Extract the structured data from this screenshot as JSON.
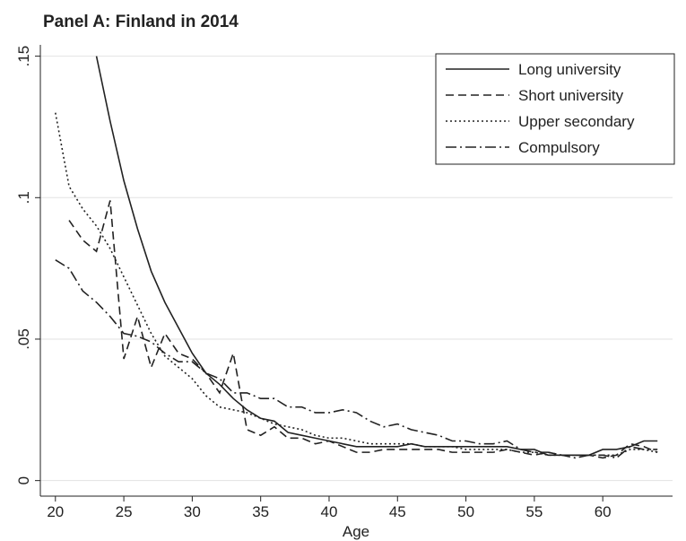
{
  "chart_data": {
    "type": "line",
    "title": "Panel A: Finland in 2014",
    "xlabel": "Age",
    "x": [
      20,
      21,
      22,
      23,
      24,
      25,
      26,
      27,
      28,
      29,
      30,
      31,
      32,
      33,
      34,
      35,
      36,
      37,
      38,
      39,
      40,
      41,
      42,
      43,
      44,
      45,
      46,
      47,
      48,
      49,
      50,
      51,
      52,
      53,
      54,
      55,
      56,
      57,
      58,
      59,
      60,
      61,
      62,
      63,
      64
    ],
    "series": [
      {
        "name": "Long university",
        "color": "#222222",
        "dash": "solid",
        "values": [
          null,
          null,
          null,
          0.15,
          0.127,
          0.106,
          0.089,
          0.074,
          0.063,
          0.054,
          0.045,
          0.038,
          0.034,
          0.029,
          0.025,
          0.022,
          0.021,
          0.017,
          0.016,
          0.015,
          0.014,
          0.013,
          0.012,
          0.012,
          0.012,
          0.012,
          0.013,
          0.012,
          0.012,
          0.012,
          0.012,
          0.012,
          0.012,
          0.012,
          0.011,
          0.011,
          0.009,
          0.009,
          0.009,
          0.009,
          0.011,
          0.011,
          0.012,
          0.014,
          0.014
        ]
      },
      {
        "name": "Short university",
        "color": "#222222",
        "dash": "dashed",
        "values": [
          null,
          0.092,
          0.085,
          0.081,
          0.099,
          0.043,
          0.058,
          0.04,
          0.052,
          0.045,
          0.043,
          0.038,
          0.031,
          0.045,
          0.018,
          0.016,
          0.019,
          0.015,
          0.015,
          0.013,
          0.014,
          0.012,
          0.01,
          0.01,
          0.011,
          0.011,
          0.011,
          0.011,
          0.011,
          0.01,
          0.01,
          0.01,
          0.01,
          0.011,
          0.01,
          0.009,
          0.01,
          0.009,
          0.009,
          0.009,
          0.008,
          0.009,
          0.013,
          0.012,
          0.01
        ]
      },
      {
        "name": "Upper secondary",
        "color": "#222222",
        "dash": "dotted",
        "values": [
          0.13,
          0.104,
          0.096,
          0.09,
          0.082,
          0.072,
          0.062,
          0.052,
          0.044,
          0.04,
          0.036,
          0.03,
          0.026,
          0.025,
          0.024,
          0.022,
          0.02,
          0.019,
          0.018,
          0.016,
          0.015,
          0.015,
          0.014,
          0.013,
          0.013,
          0.013,
          0.013,
          0.012,
          0.012,
          0.012,
          0.011,
          0.011,
          0.011,
          0.011,
          0.01,
          0.01,
          0.009,
          0.009,
          0.009,
          0.009,
          0.009,
          0.009,
          0.011,
          0.011,
          0.01
        ]
      },
      {
        "name": "Compulsory",
        "color": "#222222",
        "dash": "dashdot",
        "values": [
          0.078,
          0.075,
          0.067,
          0.063,
          0.058,
          0.052,
          0.051,
          0.049,
          0.045,
          0.042,
          0.042,
          0.038,
          0.036,
          0.031,
          0.031,
          0.029,
          0.029,
          0.026,
          0.026,
          0.024,
          0.024,
          0.025,
          0.024,
          0.021,
          0.019,
          0.02,
          0.018,
          0.017,
          0.016,
          0.014,
          0.014,
          0.013,
          0.013,
          0.014,
          0.011,
          0.01,
          0.01,
          0.009,
          0.008,
          0.009,
          0.009,
          0.008,
          0.012,
          0.011,
          0.011
        ]
      }
    ],
    "xlim": [
      18.9,
      65.1
    ],
    "ylim": [
      -0.0055,
      0.154
    ],
    "xticks": [
      20,
      25,
      30,
      35,
      40,
      45,
      50,
      55,
      60
    ],
    "yticks": [
      0,
      {
        "value": 0.05,
        "label": ".05"
      },
      {
        "value": 0.1,
        "label": ".1"
      },
      {
        "value": 0.15,
        "label": ".15"
      }
    ],
    "grid": true,
    "legend": "upper right"
  }
}
